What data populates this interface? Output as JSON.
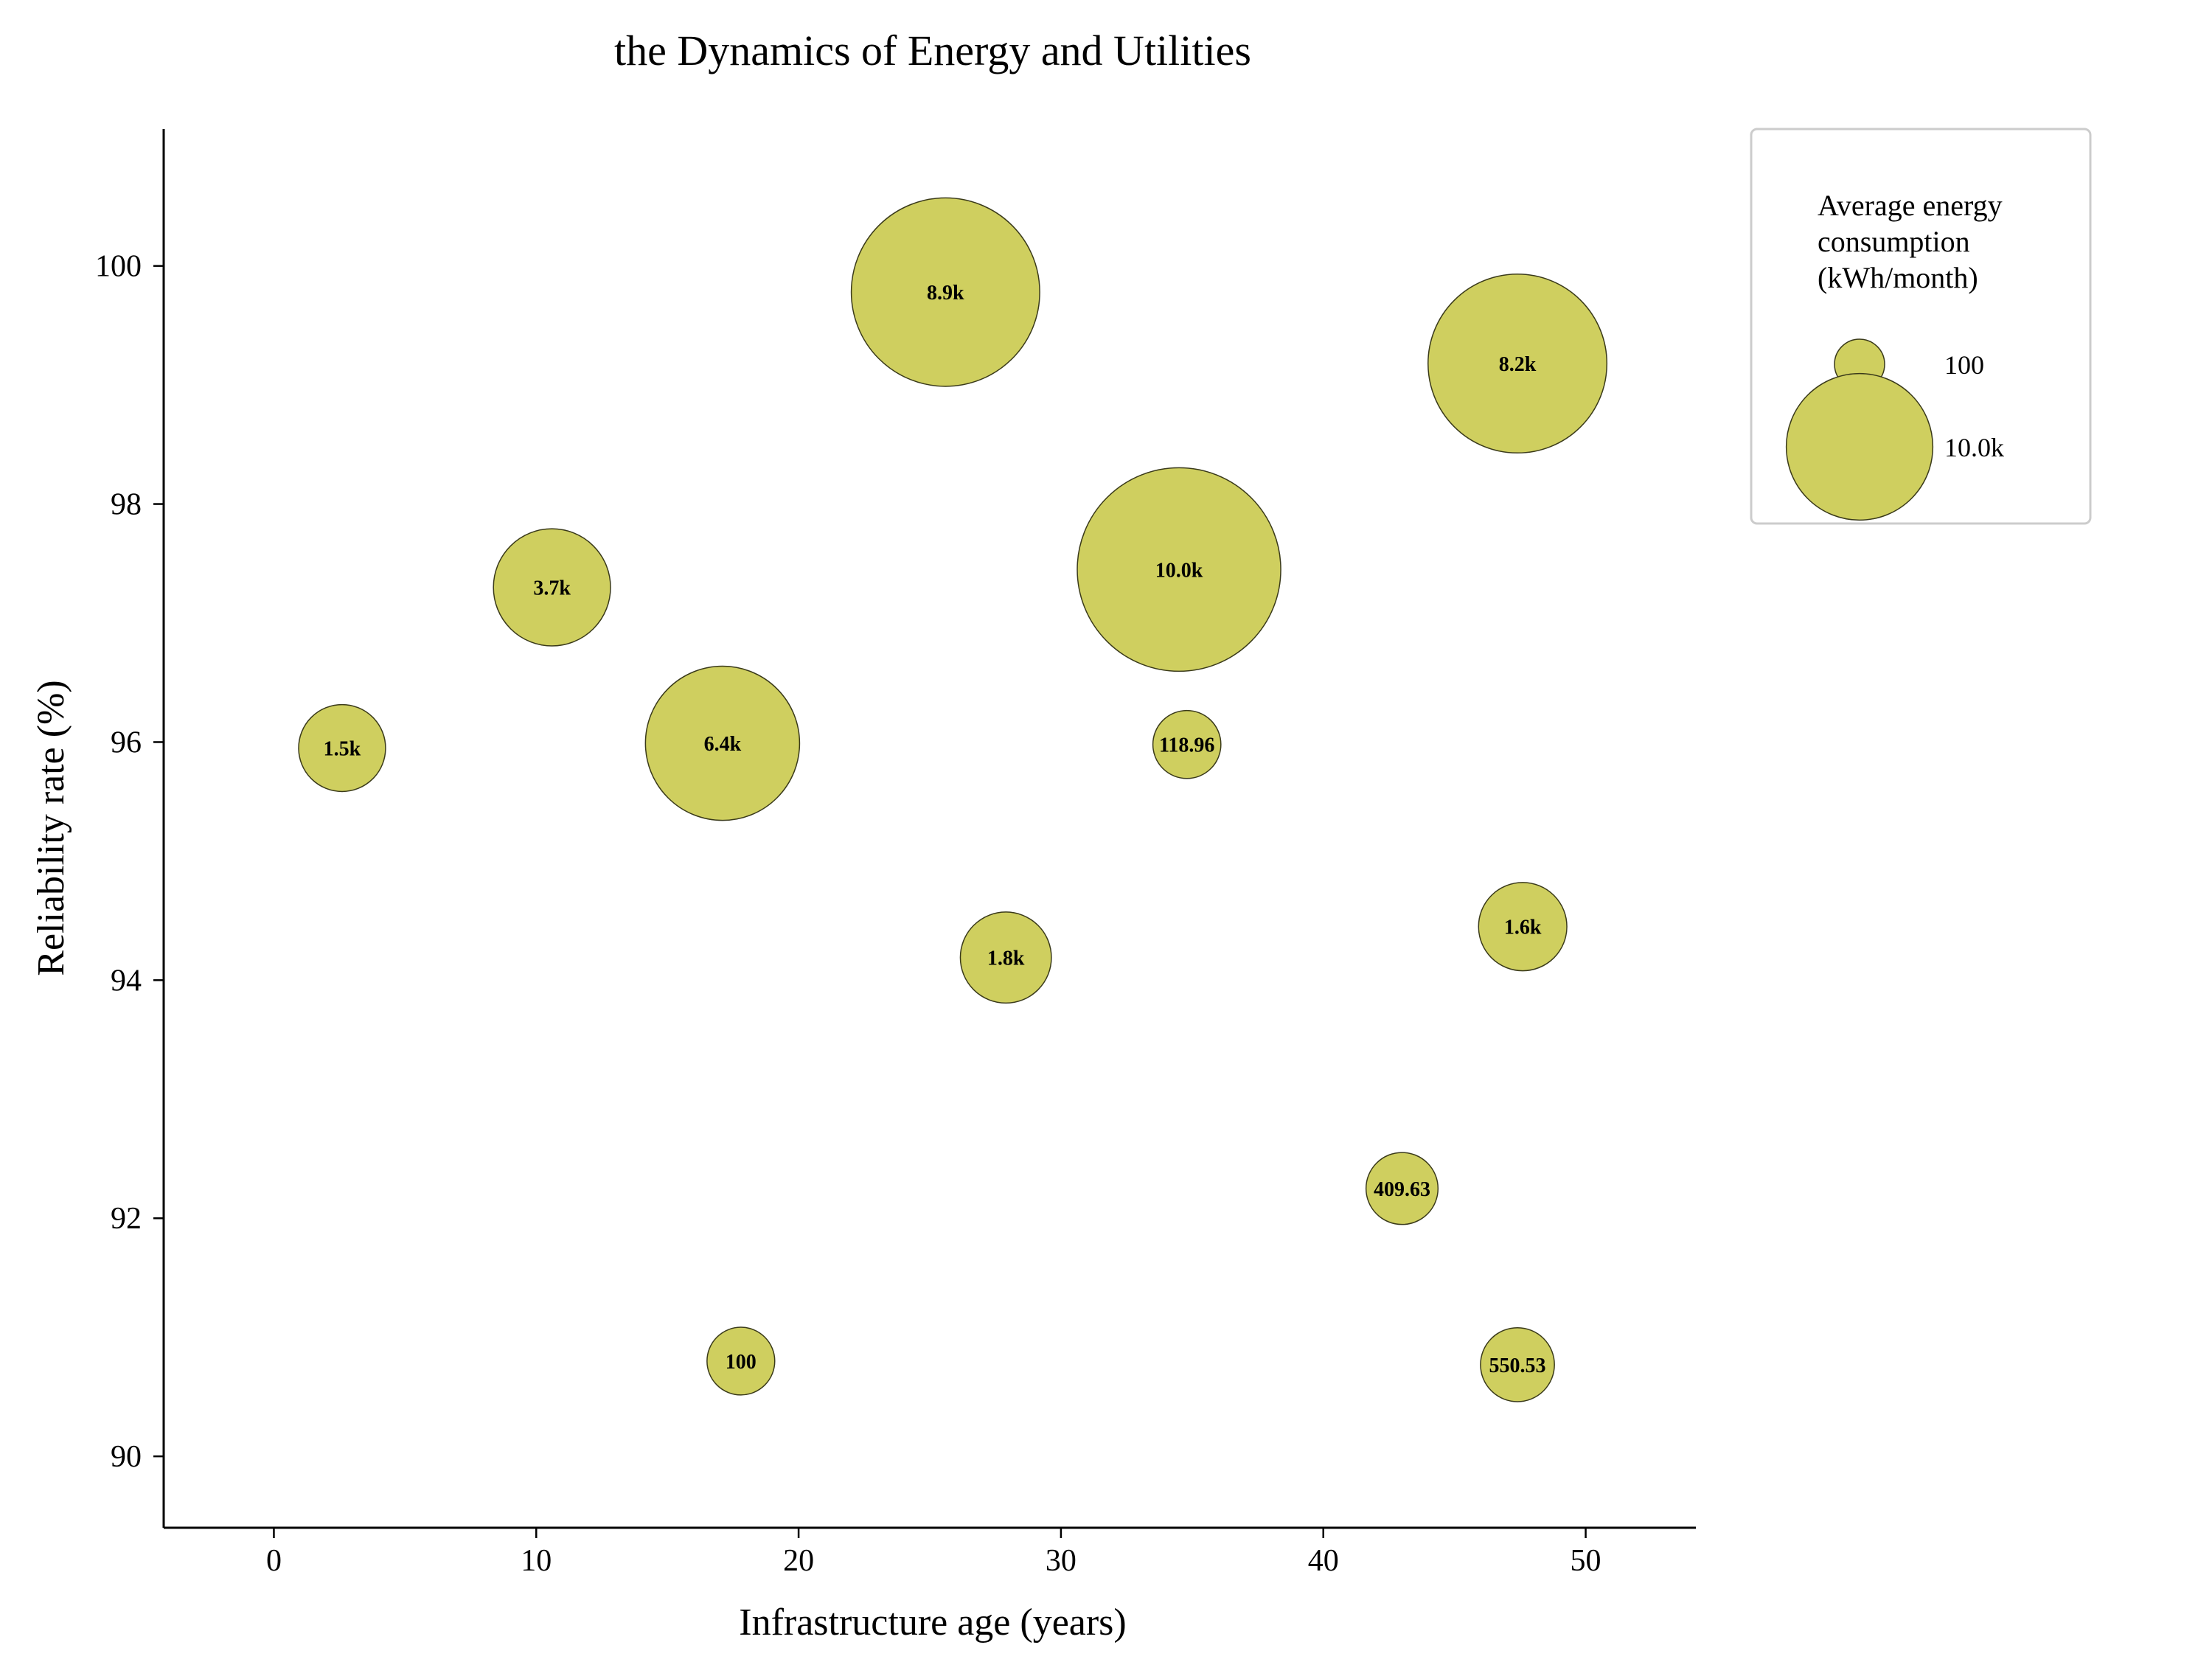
{
  "chart_data": {
    "type": "scatter",
    "title": "the Dynamics of Energy and Utilities",
    "xlabel": "Infrastructure age (years)",
    "ylabel": "Reliability rate (%)",
    "xlim": [
      -4.2,
      54.2
    ],
    "ylim": [
      89.4,
      101.15
    ],
    "xticks": [
      0,
      10,
      20,
      30,
      40,
      50
    ],
    "yticks": [
      90,
      92,
      94,
      96,
      98,
      100
    ],
    "grid": false,
    "bubble_color": "#cfcf5f",
    "bubble_edge_color": "#3a3a1a",
    "size_variable": "Average energy consumption (kWh/month)",
    "points": [
      {
        "x": 25.6,
        "y": 99.78,
        "size": 8900,
        "label": "8.9k"
      },
      {
        "x": 47.4,
        "y": 99.18,
        "size": 8200,
        "label": "8.2k"
      },
      {
        "x": 10.6,
        "y": 97.3,
        "size": 3700,
        "label": "3.7k"
      },
      {
        "x": 34.5,
        "y": 97.45,
        "size": 10000,
        "label": "10.0k"
      },
      {
        "x": 2.6,
        "y": 95.95,
        "size": 1500,
        "label": "1.5k"
      },
      {
        "x": 17.1,
        "y": 95.99,
        "size": 6400,
        "label": "6.4k"
      },
      {
        "x": 34.8,
        "y": 95.98,
        "size": 118.96,
        "label": "118.96"
      },
      {
        "x": 47.6,
        "y": 94.45,
        "size": 1600,
        "label": "1.6k"
      },
      {
        "x": 27.9,
        "y": 94.19,
        "size": 1800,
        "label": "1.8k"
      },
      {
        "x": 43.0,
        "y": 92.25,
        "size": 409.63,
        "label": "409.63"
      },
      {
        "x": 17.8,
        "y": 90.8,
        "size": 100,
        "label": "100"
      },
      {
        "x": 47.4,
        "y": 90.77,
        "size": 550.53,
        "label": "550.53"
      }
    ],
    "legend": {
      "title": "Average energy consumption (kWh/month)",
      "title_lines": [
        "Average energy",
        "consumption",
        "(kWh/month)"
      ],
      "placement": "upper-right-outside",
      "entries": [
        {
          "label": "100",
          "size": 100
        },
        {
          "label": "10.0k",
          "size": 10000
        }
      ]
    }
  }
}
